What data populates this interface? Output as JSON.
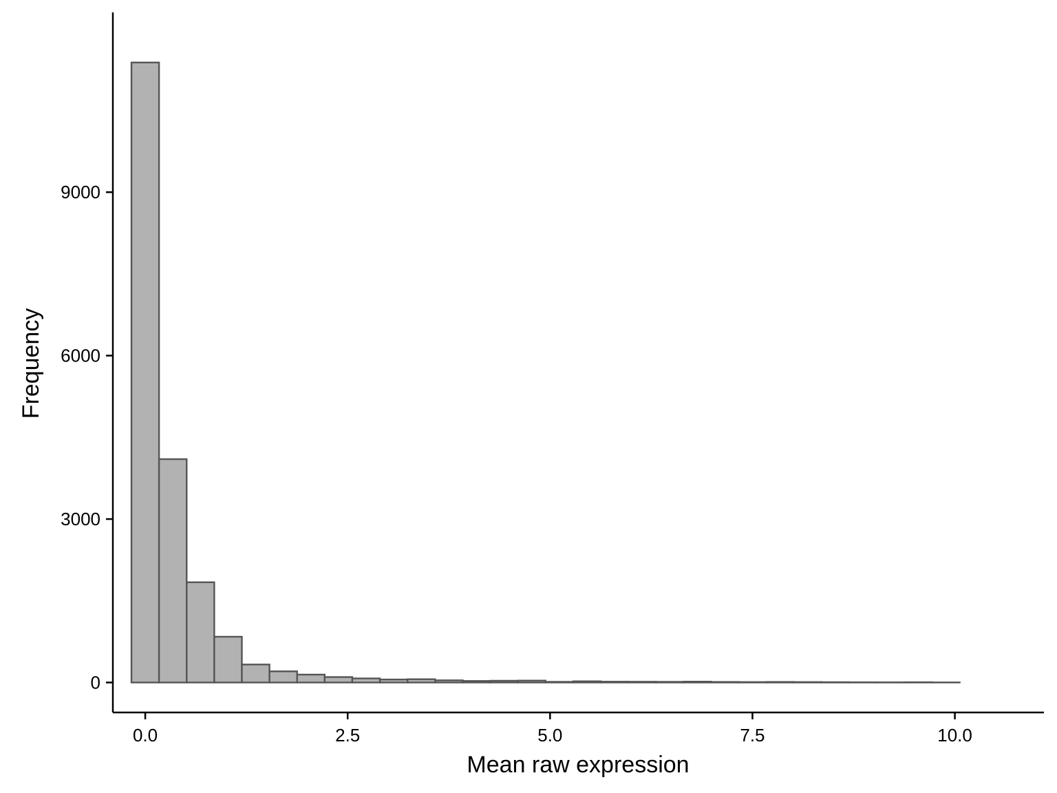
{
  "chart_data": {
    "type": "bar",
    "title": "",
    "xlabel": "Mean raw expression",
    "ylabel": "Frequency",
    "bin_width": 0.341,
    "bins": [
      {
        "x": 0.0,
        "count": 11380
      },
      {
        "x": 0.341,
        "count": 4100
      },
      {
        "x": 0.682,
        "count": 1840
      },
      {
        "x": 1.023,
        "count": 840
      },
      {
        "x": 1.364,
        "count": 330
      },
      {
        "x": 1.705,
        "count": 205
      },
      {
        "x": 2.046,
        "count": 145
      },
      {
        "x": 2.387,
        "count": 100
      },
      {
        "x": 2.728,
        "count": 75
      },
      {
        "x": 3.069,
        "count": 55
      },
      {
        "x": 3.41,
        "count": 60
      },
      {
        "x": 3.751,
        "count": 40
      },
      {
        "x": 4.092,
        "count": 28
      },
      {
        "x": 4.433,
        "count": 32
      },
      {
        "x": 4.774,
        "count": 35
      },
      {
        "x": 5.115,
        "count": 12
      },
      {
        "x": 5.456,
        "count": 22
      },
      {
        "x": 5.797,
        "count": 15
      },
      {
        "x": 6.138,
        "count": 14
      },
      {
        "x": 6.479,
        "count": 12
      },
      {
        "x": 6.82,
        "count": 16
      },
      {
        "x": 7.161,
        "count": 10
      },
      {
        "x": 7.502,
        "count": 8
      },
      {
        "x": 7.843,
        "count": 10
      },
      {
        "x": 8.184,
        "count": 8
      },
      {
        "x": 8.525,
        "count": 6
      },
      {
        "x": 8.866,
        "count": 4
      },
      {
        "x": 9.207,
        "count": 3
      },
      {
        "x": 9.548,
        "count": 5
      },
      {
        "x": 9.889,
        "count": 2
      }
    ],
    "xlim": [
      -0.4,
      11.1
    ],
    "ylim": [
      -550,
      12300
    ],
    "xticks": [
      {
        "value": 0.0,
        "label": "0.0"
      },
      {
        "value": 2.5,
        "label": "2.5"
      },
      {
        "value": 5.0,
        "label": "5.0"
      },
      {
        "value": 7.5,
        "label": "7.5"
      },
      {
        "value": 10.0,
        "label": "10.0"
      }
    ],
    "yticks": [
      {
        "value": 0,
        "label": "0"
      },
      {
        "value": 3000,
        "label": "3000"
      },
      {
        "value": 6000,
        "label": "6000"
      },
      {
        "value": 9000,
        "label": "9000"
      }
    ],
    "grid": false,
    "colors": {
      "bar_fill": "#b2b2b2",
      "bar_stroke": "#555555",
      "axis": "#000000"
    }
  }
}
